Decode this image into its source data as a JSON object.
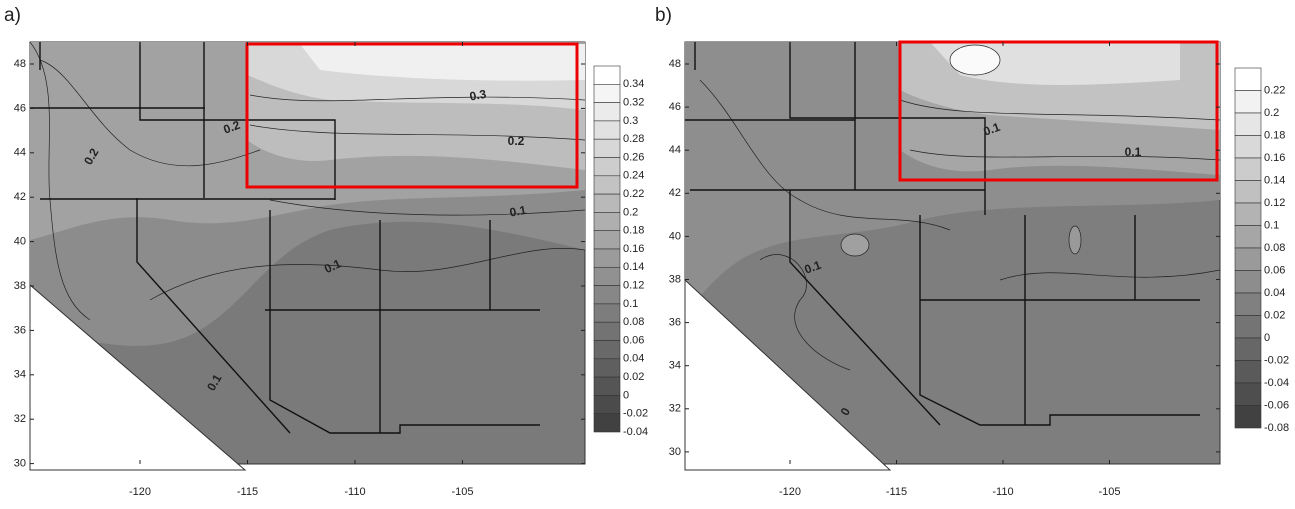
{
  "panels": [
    {
      "label": "a)",
      "xticks": [
        -120,
        -115,
        -110,
        -105
      ],
      "yticks": [
        48,
        46,
        44,
        42,
        40,
        38,
        36,
        34,
        32,
        30
      ],
      "colorbar": [
        0.34,
        0.32,
        0.3,
        0.28,
        0.26,
        0.24,
        0.22,
        0.2,
        0.18,
        0.16,
        0.14,
        0.12,
        0.1,
        0.08,
        0.06,
        0.04,
        0.02,
        0,
        -0.02,
        -0.04
      ],
      "contour_labels": [
        0.2,
        0.2,
        0.3,
        0.2,
        0.1,
        0.1,
        0.1
      ]
    },
    {
      "label": "b)",
      "xticks": [
        -120,
        -115,
        -110,
        -105
      ],
      "yticks": [
        48,
        46,
        44,
        42,
        40,
        38,
        36,
        34,
        32,
        30
      ],
      "colorbar": [
        0.22,
        0.2,
        0.18,
        0.16,
        0.14,
        0.12,
        0.1,
        0.08,
        0.06,
        0.04,
        0.02,
        0,
        -0.02,
        -0.04,
        -0.06,
        -0.08
      ],
      "contour_labels": [
        0.1,
        0.1,
        0.1,
        0
      ]
    }
  ]
}
